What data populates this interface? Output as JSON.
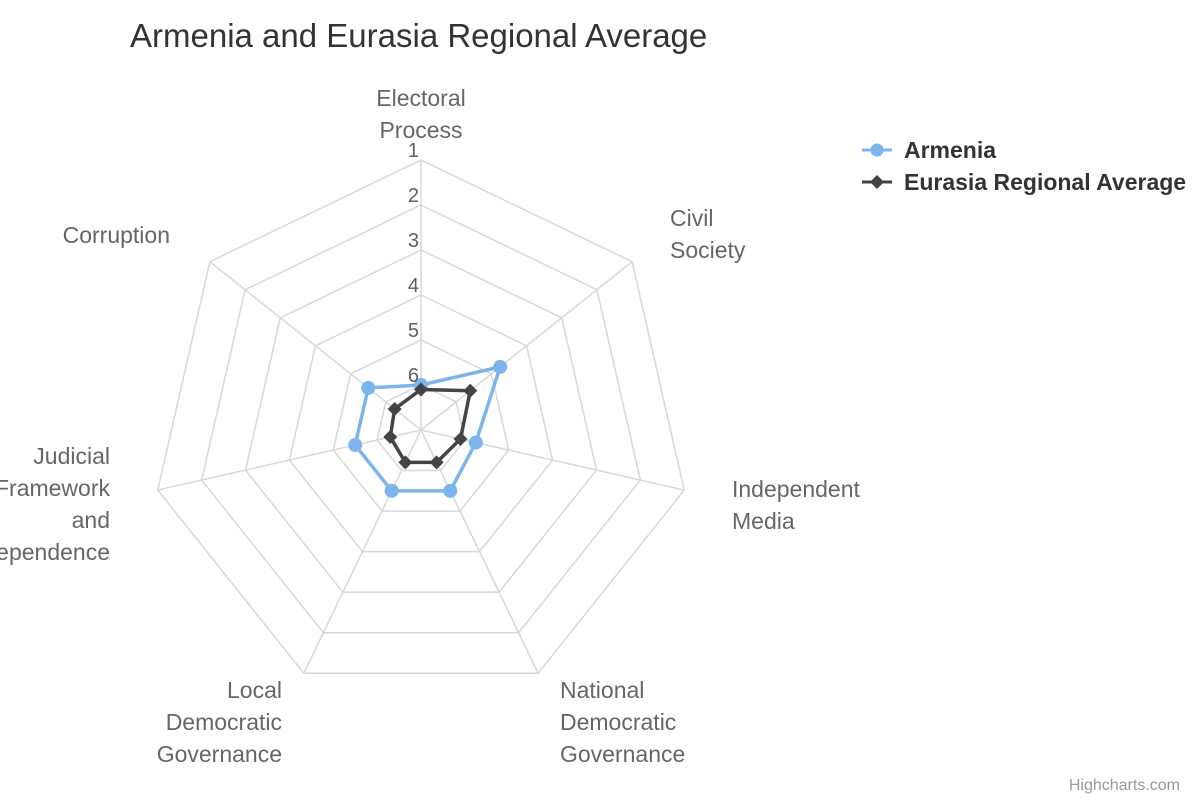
{
  "chart_data": {
    "type": "radar",
    "title": "Armenia and Eurasia Regional Average",
    "categories": [
      [
        "Electoral",
        "Process"
      ],
      [
        "Civil",
        "Society"
      ],
      [
        "Independent",
        "Media"
      ],
      [
        "National",
        "Democratic",
        "Governance"
      ],
      [
        "Local",
        "Democratic",
        "Governance"
      ],
      [
        "Judicial",
        "Framework",
        "and",
        "Independence"
      ],
      [
        "Corruption"
      ]
    ],
    "axis": {
      "min": 1,
      "max": 7,
      "reversed": true,
      "ticks": [
        "1",
        "2",
        "3",
        "4",
        "5",
        "6"
      ]
    },
    "grid": true,
    "legend_position": "top-right",
    "series": [
      {
        "name": "Armenia",
        "color": "#7cb5ec",
        "marker": "circle",
        "values": [
          6.0,
          4.75,
          5.75,
          5.5,
          5.5,
          5.5,
          5.5
        ]
      },
      {
        "name": "Eurasia Regional Average",
        "color": "#434348",
        "marker": "diamond",
        "values": [
          6.1,
          5.6,
          6.1,
          6.2,
          6.2,
          6.3,
          6.25
        ]
      }
    ]
  },
  "credits": "Highcharts.com"
}
